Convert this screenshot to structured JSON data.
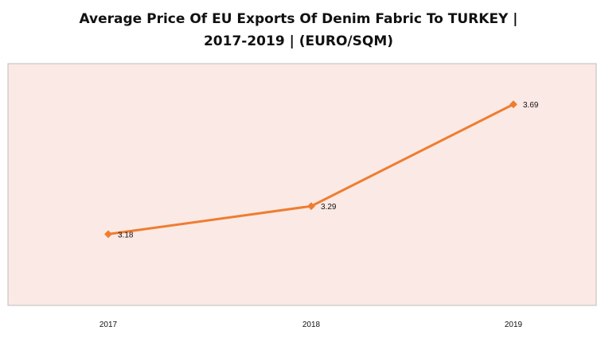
{
  "chart_data": {
    "type": "line",
    "title_lines": [
      "Average Price Of EU Exports Of Denim Fabric To TURKEY |",
      "2017-2019  | (EURO/SQM)"
    ],
    "xlabel": "",
    "ylabel": "",
    "categories": [
      "2017",
      "2018",
      "2019"
    ],
    "series": [
      {
        "values": [
          3.18,
          3.29,
          3.69
        ],
        "labels": [
          "3.18",
          "3.29",
          "3.69"
        ],
        "color": "#ee7d31"
      }
    ],
    "ylim": [
      2.9,
      3.85
    ],
    "grid": false,
    "legend": "none",
    "plot_background": "#fbe9e5"
  }
}
